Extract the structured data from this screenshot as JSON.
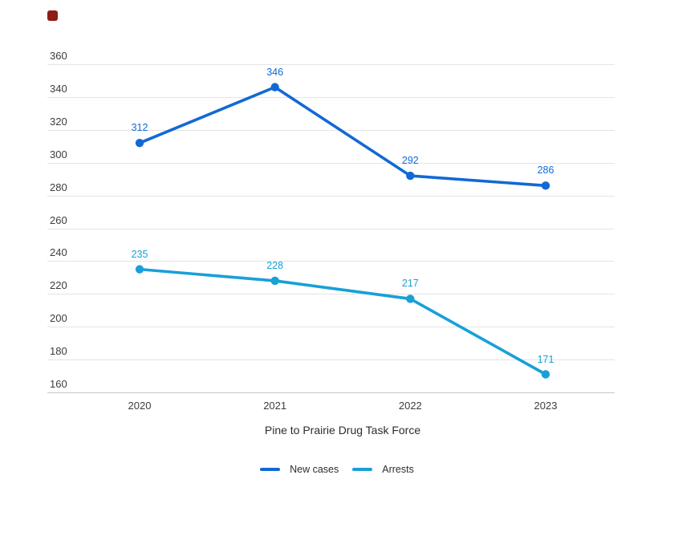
{
  "brand_mark": {
    "color": "#8e1c17"
  },
  "chart_data": {
    "type": "line",
    "categories": [
      "2020",
      "2021",
      "2022",
      "2023"
    ],
    "series": [
      {
        "name": "New cases",
        "color": "#1169d4",
        "values": [
          312,
          346,
          292,
          286
        ]
      },
      {
        "name": "Arrests",
        "color": "#18a0d8",
        "values": [
          235,
          228,
          217,
          171
        ]
      }
    ],
    "title": "",
    "xlabel": "Pine to Prairie Drug Task Force",
    "ylabel": "",
    "ylim": [
      160,
      360
    ],
    "yticks": [
      360,
      340,
      320,
      300,
      280,
      260,
      240,
      220,
      200,
      180,
      160
    ],
    "grid": true,
    "legend_position": "bottom",
    "data_labels": true,
    "marker": "circle"
  }
}
